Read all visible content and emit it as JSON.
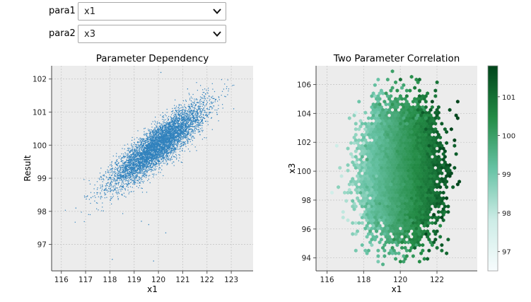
{
  "controls": {
    "para1": {
      "label": "para1",
      "value": "x1"
    },
    "para2": {
      "label": "para2",
      "value": "x3"
    }
  },
  "chart_data": [
    {
      "type": "scatter",
      "title": "Parameter Dependency",
      "xlabel": "x1",
      "ylabel": "Result",
      "xlim": [
        115.6,
        123.9
      ],
      "ylim": [
        96.2,
        102.4
      ],
      "xticks": [
        "116",
        "117",
        "118",
        "119",
        "120",
        "121",
        "122",
        "123"
      ],
      "yticks": [
        "97",
        "98",
        "99",
        "100",
        "101",
        "102"
      ],
      "grid": true,
      "point_color": "#3182bd",
      "distribution": {
        "x_mean": 120.0,
        "x_sd": 0.95,
        "y_mean": 100.0,
        "slope": 0.55,
        "y_resid_sd": 0.3,
        "n": 6000
      },
      "outliers": [
        [
          116.6,
          98.1
        ],
        [
          118.1,
          96.55
        ],
        [
          119.3,
          97.7
        ],
        [
          119.6,
          97.6
        ],
        [
          119.8,
          96.5
        ],
        [
          120.1,
          102.2
        ],
        [
          120.3,
          97.35
        ],
        [
          121.2,
          101.7
        ],
        [
          123.1,
          101.1
        ]
      ]
    },
    {
      "type": "heatmap",
      "subtype": "hexbin",
      "title": "Two Parameter Correlation",
      "xlabel": "x1",
      "ylabel": "x3",
      "xlim": [
        115.4,
        124.2
      ],
      "ylim": [
        93.1,
        107.3
      ],
      "xticks": [
        "116",
        "118",
        "120",
        "122"
      ],
      "yticks": [
        "94",
        "96",
        "98",
        "100",
        "102",
        "104",
        "106"
      ],
      "grid": true,
      "colorbar": {
        "min": 96.5,
        "max": 101.8,
        "ticks": [
          "97",
          "98",
          "99",
          "100",
          "101"
        ],
        "colors": [
          "#f7fcfd",
          "#ccece6",
          "#66c2a4",
          "#238b45",
          "#00441b"
        ]
      },
      "distribution": {
        "x_mean": 120.0,
        "x_sd": 0.95,
        "y_mean": 100.0,
        "y_sd": 2.0,
        "n": 9000
      }
    }
  ]
}
